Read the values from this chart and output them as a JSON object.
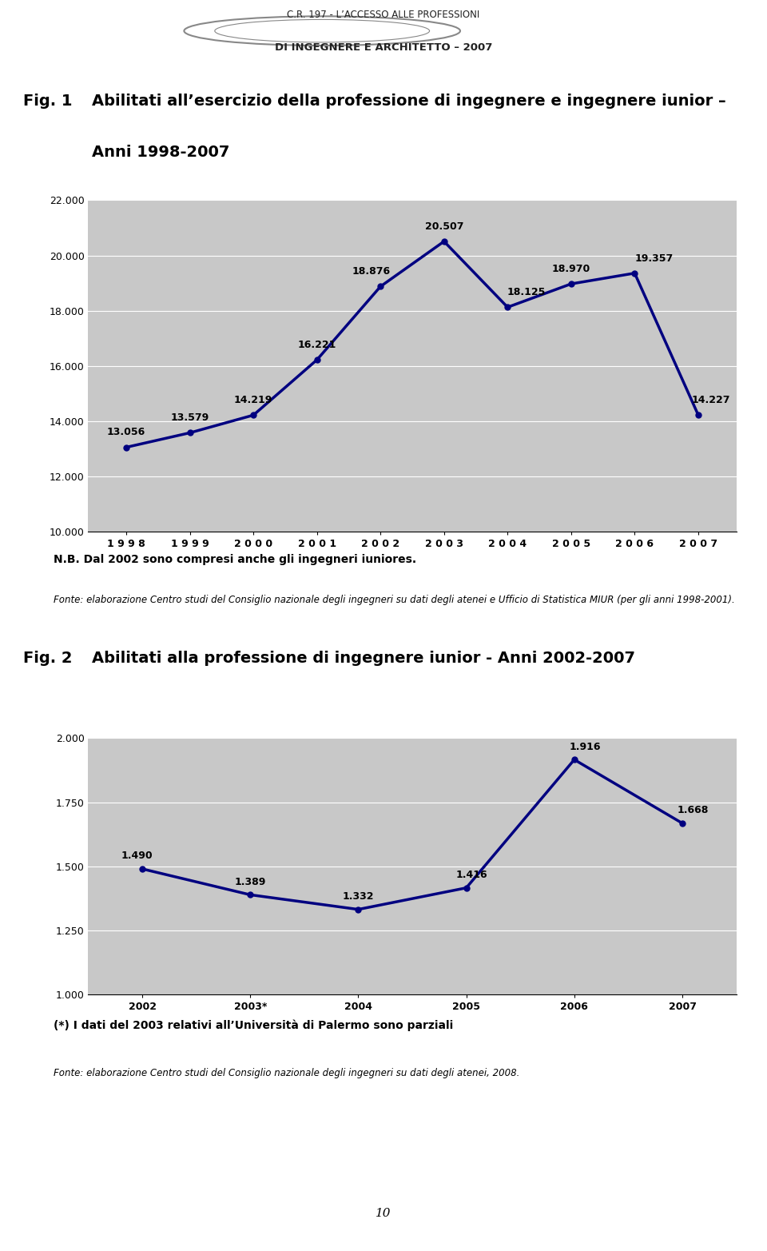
{
  "header_title_line1": "C.R. 197 - L’ACCESSO ALLE PROFESSIONI",
  "header_title_line2": "DI INGEGNERE E ARCHITETTO – 2007",
  "fig1_label": "Fig. 1",
  "fig1_title_line1": "Abilitati all’esercizio della professione di ingegnere e ingegnere iunior –",
  "fig1_title_line2": "Anni 1998-2007",
  "fig1_years": [
    1998,
    1999,
    2000,
    2001,
    2002,
    2003,
    2004,
    2005,
    2006,
    2007
  ],
  "fig1_values": [
    13056,
    13579,
    14219,
    16221,
    18876,
    20507,
    18125,
    18970,
    19357,
    14227
  ],
  "fig1_ylim": [
    10000,
    22000
  ],
  "fig1_yticks": [
    10000,
    12000,
    14000,
    16000,
    18000,
    20000,
    22000
  ],
  "fig1_ytick_labels": [
    "10.000",
    "12.000",
    "14.000",
    "16.000",
    "18.000",
    "20.000",
    "22.000"
  ],
  "fig1_data_labels": [
    "13.056",
    "13.579",
    "14.219",
    "16.221",
    "18.876",
    "20.507",
    "18.125",
    "18.970",
    "19.357",
    "14.227"
  ],
  "fig1_data_label_offsets": [
    [
      0,
      350
    ],
    [
      0,
      350
    ],
    [
      0,
      350
    ],
    [
      0,
      350
    ],
    [
      -0.15,
      350
    ],
    [
      0,
      350
    ],
    [
      0.3,
      350
    ],
    [
      0,
      350
    ],
    [
      0.3,
      350
    ],
    [
      0.2,
      350
    ]
  ],
  "fig1_nb_text": "N.B. Dal 2002 sono compresi anche gli ingegneri iuniores.",
  "fig1_fonte_text": "Fonte: elaborazione Centro studi del Consiglio nazionale degli ingegneri su dati degli atenei e Ufficio di Statistica MIUR (per gli anni 1998-2001).",
  "fig2_label": "Fig. 2",
  "fig2_title": "Abilitati alla professione di ingegnere iunior - Anni 2002-2007",
  "fig2_years": [
    "2002",
    "2003*",
    "2004",
    "2005",
    "2006",
    "2007"
  ],
  "fig2_values": [
    1490,
    1389,
    1332,
    1416,
    1916,
    1668
  ],
  "fig2_ylim": [
    1000,
    2000
  ],
  "fig2_yticks": [
    1000,
    1250,
    1500,
    1750,
    2000
  ],
  "fig2_ytick_labels": [
    "1.000",
    "1.250",
    "1.500",
    "1.750",
    "2.000"
  ],
  "fig2_data_labels": [
    "1.490",
    "1.389",
    "1.332",
    "1.416",
    "1.916",
    "1.668"
  ],
  "fig2_data_label_offsets": [
    [
      -0.05,
      30
    ],
    [
      0,
      30
    ],
    [
      0,
      30
    ],
    [
      0.05,
      30
    ],
    [
      0.1,
      30
    ],
    [
      0.1,
      30
    ]
  ],
  "fig2_footnote1": "(*) I dati del 2003 relativi all’Università di Palermo sono parziali",
  "fig2_fonte_text": "Fonte: elaborazione Centro studi del Consiglio nazionale degli ingegneri su dati degli atenei, 2008.",
  "page_number": "10",
  "line_color": "#000080",
  "line_width": 2.5,
  "marker": "o",
  "marker_size": 5,
  "plot_bg_color": "#C8C8C8",
  "fig_bg_color": "#FFFFFF",
  "grid_color": "#FFFFFF"
}
